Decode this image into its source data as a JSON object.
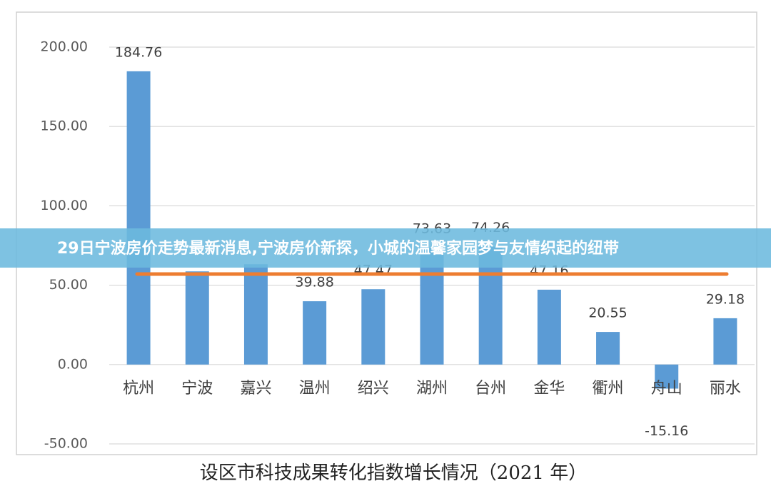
{
  "banner": {
    "text": "29日宁波房价走势最新消息,宁波房价新探，小城的温馨家园梦与友情织起的纽带"
  },
  "chart_data": {
    "type": "bar",
    "title": "设区市科技成果转化指数增长情况（2021 年）",
    "categories": [
      "杭州",
      "宁波",
      "嘉兴",
      "温州",
      "绍兴",
      "湖州",
      "台州",
      "金华",
      "衢州",
      "舟山",
      "丽水"
    ],
    "values": [
      184.76,
      58.7,
      63.2,
      39.88,
      47.47,
      73.63,
      74.26,
      47.16,
      20.55,
      -15.16,
      29.18
    ],
    "value_labels": [
      "184.76",
      null,
      null,
      "39.88",
      "47.47",
      "73.63",
      "74.26",
      "47.16",
      "20.55",
      "-15.16",
      "29.18"
    ],
    "color": "#5b9bd5",
    "ylim": [
      -50,
      200
    ],
    "yticks": [
      {
        "value": -50,
        "label": "-50.00"
      },
      {
        "value": 0,
        "label": "0.00"
      },
      {
        "value": 50,
        "label": "50.00"
      },
      {
        "value": 100,
        "label": "100.00"
      },
      {
        "value": 150,
        "label": "150.00"
      },
      {
        "value": 200,
        "label": "200.00"
      }
    ],
    "grid": true,
    "reference_line": {
      "value": 57,
      "color": "#ed7d31"
    }
  }
}
